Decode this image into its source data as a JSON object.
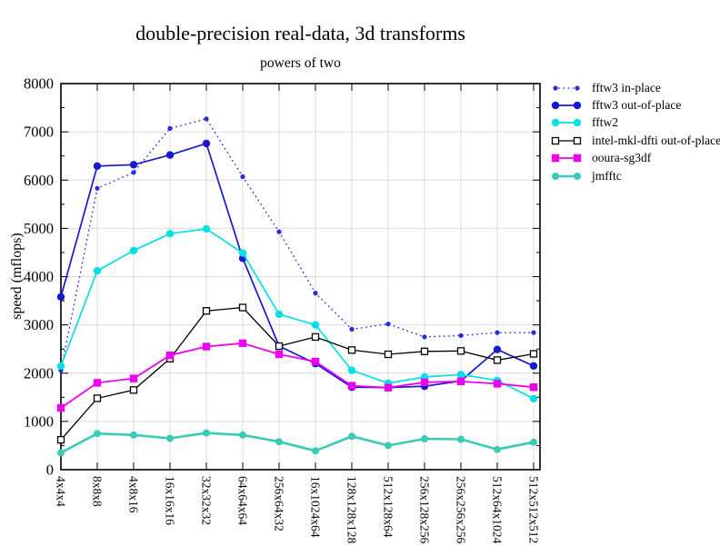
{
  "chart_data": {
    "type": "line",
    "title": "double-precision real-data, 3d transforms",
    "subtitle": "powers of two",
    "ylabel": "speed (mflops)",
    "xlabel": "",
    "ylim": [
      0,
      8000
    ],
    "yticks": [
      0,
      1000,
      2000,
      3000,
      4000,
      5000,
      6000,
      7000,
      8000
    ],
    "grid": true,
    "legend_position": "right",
    "categories": [
      "4x4x4",
      "8x8x8",
      "4x8x16",
      "16x16x16",
      "32x32x32",
      "64x64x64",
      "256x64x32",
      "16x1024x64",
      "128x128x128",
      "512x128x64",
      "256x128x256",
      "256x256x256",
      "512x64x1024",
      "512x512x512"
    ],
    "series": [
      {
        "name": "fftw3 in-place",
        "color": "#2a2ae6",
        "line": "dotted",
        "marker": "circle-small",
        "width": 1.3,
        "values": [
          2060,
          5830,
          6160,
          7070,
          7270,
          6070,
          4930,
          3660,
          2910,
          3020,
          2750,
          2780,
          2840,
          2840
        ]
      },
      {
        "name": "fftw3 out-of-place",
        "color": "#1818cf",
        "line": "solid",
        "marker": "circle",
        "width": 1.7,
        "values": [
          3580,
          6290,
          6320,
          6520,
          6760,
          4380,
          2560,
          2200,
          1710,
          1700,
          1730,
          1840,
          2490,
          2150
        ]
      },
      {
        "name": "fftw2",
        "color": "#00e0e6",
        "line": "solid",
        "marker": "circle",
        "width": 1.7,
        "values": [
          2150,
          4120,
          4540,
          4890,
          4990,
          4490,
          3220,
          3000,
          2060,
          1790,
          1920,
          1970,
          1850,
          1470
        ]
      },
      {
        "name": "intel-mkl-dfti out-of-place",
        "color": "#000000",
        "line": "solid",
        "marker": "square-open",
        "width": 1.3,
        "values": [
          620,
          1480,
          1650,
          2300,
          3290,
          3360,
          2560,
          2750,
          2480,
          2390,
          2450,
          2460,
          2270,
          2400
        ]
      },
      {
        "name": "ooura-sg3df",
        "color": "#ee00ee",
        "line": "solid",
        "marker": "square",
        "width": 1.8,
        "values": [
          1280,
          1800,
          1890,
          2370,
          2550,
          2620,
          2390,
          2240,
          1740,
          1700,
          1810,
          1830,
          1780,
          1710
        ]
      },
      {
        "name": "jmfftc",
        "color": "#38cbb5",
        "line": "solid",
        "marker": "circle-med",
        "width": 2.6,
        "values": [
          350,
          750,
          720,
          650,
          760,
          720,
          580,
          390,
          690,
          500,
          640,
          630,
          420,
          570
        ]
      }
    ],
    "grid_color": "#dcdcdc"
  }
}
